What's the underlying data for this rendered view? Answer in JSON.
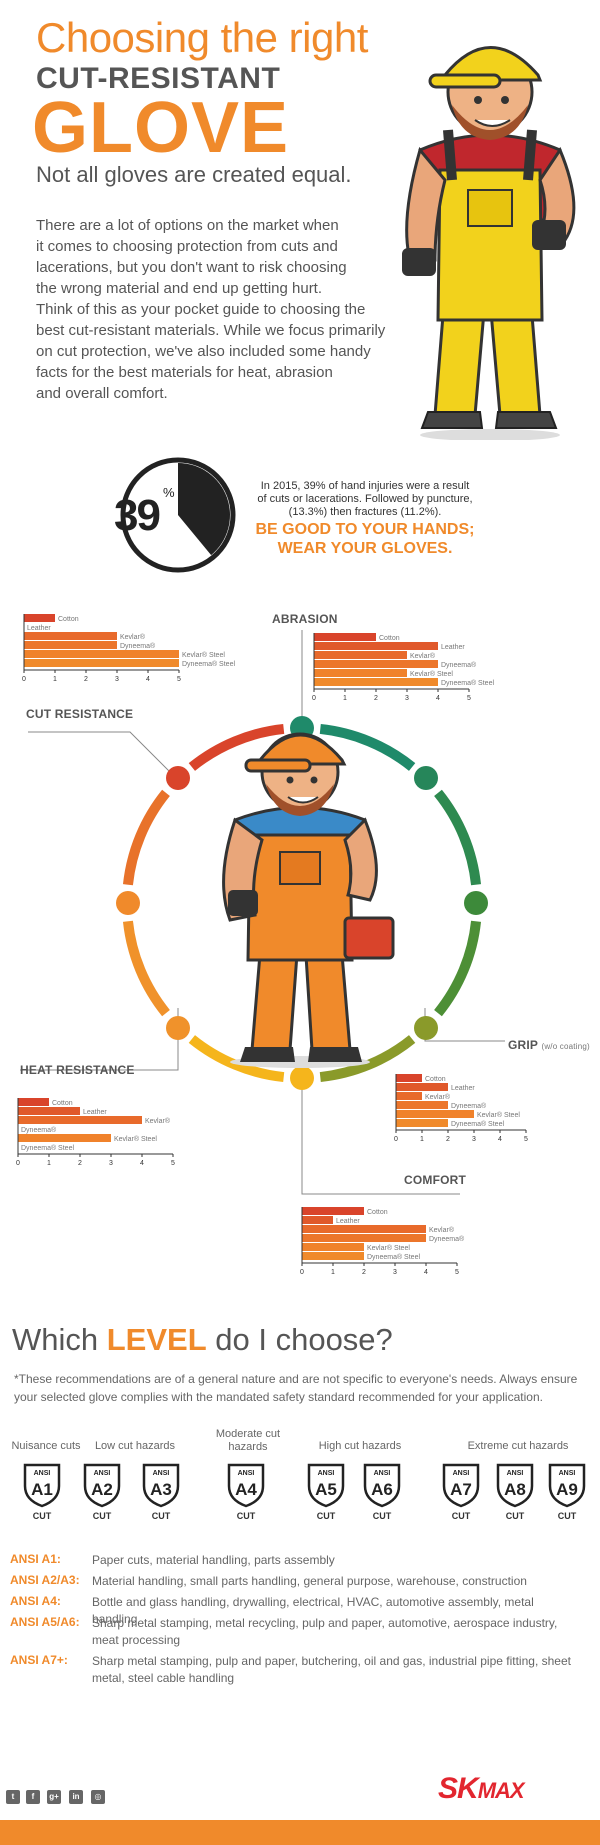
{
  "header": {
    "title_line1": "Choosing the right",
    "title_line2": "CUT-RESISTANT",
    "title_line3": "GLOVE",
    "subtitle": "Not all gloves are created equal.",
    "intro": [
      "There are a lot of options on the market when",
      "it comes to choosing protection from cuts and",
      "lacerations, but you don't want to risk choosing",
      "the wrong material and end up getting hurt.",
      "Think of this as your pocket guide to choosing the",
      "best cut-resistant materials. While we focus primarily",
      "on cut protection, we've also included some handy",
      "facts for the best materials for heat, abrasion",
      "and overall comfort."
    ]
  },
  "stat": {
    "number": "39",
    "percent_sign": "%",
    "fraction": 0.39,
    "text": [
      "In 2015, 39% of hand injuries were a result",
      "of cuts or lacerations. Followed by puncture,",
      "(13.3%) then fractures (11.2%)."
    ],
    "cta": [
      "BE GOOD TO YOUR HANDS;",
      "WEAR YOUR GLOVES."
    ]
  },
  "chart_data": [
    {
      "type": "bar",
      "title": "CUT RESISTANCE",
      "categories": [
        "Cotton",
        "Leather",
        "Kevlar®",
        "Dyneema®",
        "Kevlar® Steel",
        "Dyneema® Steel"
      ],
      "values": [
        1,
        0,
        3,
        3,
        5,
        5
      ],
      "xlim": [
        0,
        5
      ],
      "ticks": [
        0,
        1,
        2,
        3,
        4,
        5
      ]
    },
    {
      "type": "bar",
      "title": "ABRASION",
      "categories": [
        "Cotton",
        "Leather",
        "Kevlar®",
        "Dyneema®",
        "Kevlar® Steel",
        "Dyneema® Steel"
      ],
      "values": [
        2,
        4,
        3,
        4,
        3,
        4
      ],
      "xlim": [
        0,
        5
      ],
      "ticks": [
        0,
        1,
        2,
        3,
        4,
        5
      ]
    },
    {
      "type": "bar",
      "title": "HEAT RESISTANCE",
      "categories": [
        "Cotton",
        "Leather",
        "Kevlar®",
        "Dyneema®",
        "Kevlar® Steel",
        "Dyneema® Steel"
      ],
      "values": [
        1,
        2,
        4,
        0,
        3,
        0
      ],
      "xlim": [
        0,
        5
      ],
      "ticks": [
        0,
        1,
        2,
        3,
        4,
        5
      ]
    },
    {
      "type": "bar",
      "title": "GRIP",
      "title_note": "(w/o coating)",
      "categories": [
        "Cotton",
        "Leather",
        "Kevlar®",
        "Dyneema®",
        "Kevlar® Steel",
        "Dyneema® Steel"
      ],
      "values": [
        1,
        2,
        1,
        2,
        3,
        2
      ],
      "xlim": [
        0,
        5
      ],
      "ticks": [
        0,
        1,
        2,
        3,
        4,
        5
      ]
    },
    {
      "type": "bar",
      "title": "COMFORT",
      "categories": [
        "Cotton",
        "Leather",
        "Kevlar®",
        "Dyneema®",
        "Kevlar® Steel",
        "Dyneema® Steel"
      ],
      "values": [
        2,
        1,
        4,
        4,
        2,
        2
      ],
      "xlim": [
        0,
        5
      ],
      "ticks": [
        0,
        1,
        2,
        3,
        4,
        5
      ]
    }
  ],
  "levels": {
    "title_pre": "Which ",
    "title_hl": "LEVEL",
    "title_post": " do I choose?",
    "note": "*These recommendations are of a general nature and are not specific to everyone's needs. Always ensure your selected glove complies with the mandated safety standard recommended for your application.",
    "groups": [
      {
        "label": "Nuisance cuts"
      },
      {
        "label": "Low cut hazards"
      },
      {
        "label": "Moderate cut hazards"
      },
      {
        "label": "High cut hazards"
      },
      {
        "label": "Extreme cut hazards"
      }
    ],
    "badges": [
      {
        "top": "ANSI",
        "code": "A1",
        "cut": "CUT"
      },
      {
        "top": "ANSI",
        "code": "A2",
        "cut": "CUT"
      },
      {
        "top": "ANSI",
        "code": "A3",
        "cut": "CUT"
      },
      {
        "top": "ANSI",
        "code": "A4",
        "cut": "CUT"
      },
      {
        "top": "ANSI",
        "code": "A5",
        "cut": "CUT"
      },
      {
        "top": "ANSI",
        "code": "A6",
        "cut": "CUT"
      },
      {
        "top": "ANSI",
        "code": "A7",
        "cut": "CUT"
      },
      {
        "top": "ANSI",
        "code": "A8",
        "cut": "CUT"
      },
      {
        "top": "ANSI",
        "code": "A9",
        "cut": "CUT"
      }
    ],
    "recommendations": [
      {
        "key": "ANSI A1:",
        "desc": "Paper cuts, material handling, parts assembly"
      },
      {
        "key": "ANSI A2/A3:",
        "desc": "Material handling, small parts handling, general purpose, warehouse, construction"
      },
      {
        "key": "ANSI A4:",
        "desc": "Bottle and glass handling, drywalling, electrical, HVAC, automotive assembly, metal handling"
      },
      {
        "key": "ANSI A5/A6:",
        "desc": "Sharp metal stamping, metal recycling, pulp and paper, automotive, aerospace industry, meat processing"
      },
      {
        "key": "ANSI A7+:",
        "desc": "Sharp metal stamping, pulp and paper, butchering, oil and gas, industrial pipe fitting, sheet metal, steel cable handling"
      }
    ]
  },
  "footer": {
    "social": [
      {
        "icon": "twitter-icon",
        "glyph": "t"
      },
      {
        "icon": "facebook-icon",
        "glyph": "f"
      },
      {
        "icon": "google-plus-icon",
        "glyph": "g+"
      },
      {
        "icon": "linkedin-icon",
        "glyph": "in"
      },
      {
        "icon": "instagram-icon",
        "glyph": "◎"
      }
    ],
    "logo_sk": "SK",
    "logo_max": "MAX"
  },
  "colors": {
    "accent": "#f08a2b",
    "bar_red": "#d9442b",
    "bar_orange": "#f0892b",
    "logo_red": "#e2262f"
  }
}
